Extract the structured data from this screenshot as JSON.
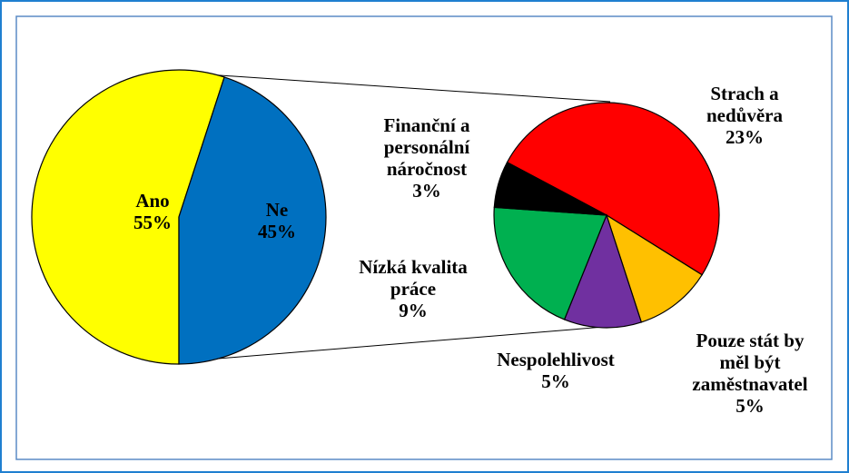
{
  "chart_data": [
    {
      "type": "pie",
      "categories": [
        "Ano",
        "Ne"
      ],
      "values": [
        55,
        45
      ],
      "value_labels": [
        "55%",
        "45%"
      ],
      "colors": [
        "#ffff00",
        "#0070c0"
      ]
    },
    {
      "type": "pie",
      "categories": [
        "Strach a\nnedůvěra",
        "Pouze stát by\nměl být\nzaměstnavatel",
        "Nespolehlivost",
        "Nízká kvalita\npráce",
        "Finanční a\npersonální\nnáročnost"
      ],
      "values": [
        23,
        5,
        5,
        9,
        3
      ],
      "value_labels": [
        "23%",
        "5%",
        "5%",
        "9%",
        "3%"
      ],
      "colors": [
        "#ff0000",
        "#ffc000",
        "#7030a0",
        "#00b050",
        "#000000"
      ]
    }
  ]
}
